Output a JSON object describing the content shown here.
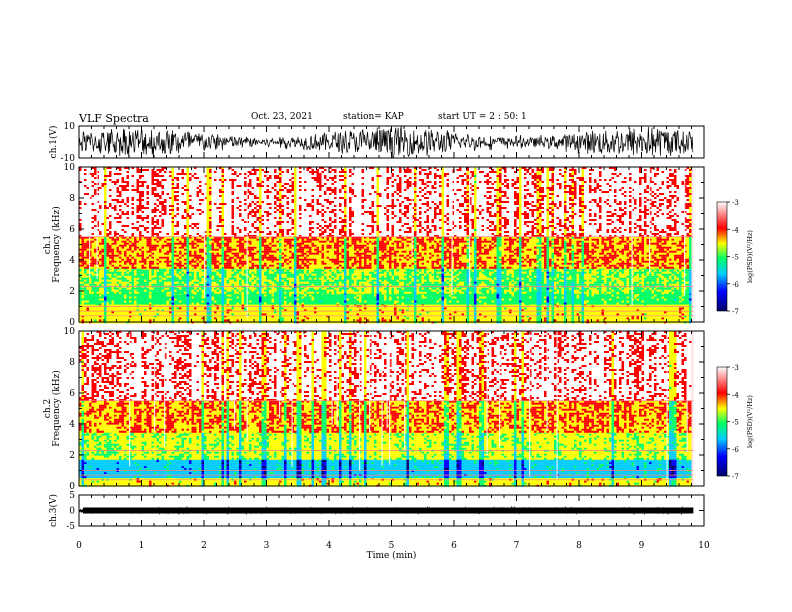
{
  "header": {
    "title": "VLF Spectra",
    "date": "Oct. 23, 2021",
    "station": "station= KAP",
    "start": "start UT = 2 : 50: 1"
  },
  "chart_data": [
    {
      "type": "line",
      "title": "",
      "ylabel": "ch.1(V)",
      "ylim": [
        -10,
        10
      ],
      "yticks": [
        "10",
        "-10"
      ],
      "description_values": {
        "amplitude_min": -10,
        "amplitude_max": 10
      }
    },
    {
      "type": "heatmap",
      "ylabel": "ch.1 Frequency (kHz)",
      "ylim": [
        0,
        10
      ],
      "yticks": [
        "0",
        "2",
        "4",
        "6",
        "8",
        "10"
      ],
      "colorbar": {
        "label": "log(PSD)(V²/Hz)",
        "range": [
          -7,
          -3
        ],
        "ticks": [
          "-3",
          "-4",
          "-5",
          "-6",
          "-7"
        ]
      },
      "bands": [
        {
          "f_low": 0,
          "f_high": 1.2,
          "level": -4.3
        },
        {
          "f_low": 1.2,
          "f_high": 1.9,
          "level": -4.9
        },
        {
          "f_low": 1.9,
          "f_high": 3.5,
          "level": -4.7
        },
        {
          "f_low": 3.5,
          "f_high": 5.5,
          "level": -4.0
        },
        {
          "f_low": 5.5,
          "f_high": 10,
          "level": -3.2
        }
      ]
    },
    {
      "type": "heatmap",
      "ylabel": "ch.2 Frequency (kHz)",
      "ylim": [
        0,
        10
      ],
      "yticks": [
        "0",
        "2",
        "4",
        "6",
        "8",
        "10"
      ],
      "colorbar": {
        "label": "log(PSD)(V²/Hz)",
        "range": [
          -7,
          -3
        ],
        "ticks": [
          "-3",
          "-4",
          "-5",
          "-6",
          "-7"
        ]
      },
      "bands": [
        {
          "f_low": 0,
          "f_high": 0.6,
          "level": -4.3
        },
        {
          "f_low": 0.6,
          "f_high": 1.8,
          "level": -5.6
        },
        {
          "f_low": 1.8,
          "f_high": 3.5,
          "level": -4.5
        },
        {
          "f_low": 3.5,
          "f_high": 5.5,
          "level": -4.0
        },
        {
          "f_low": 5.5,
          "f_high": 10,
          "level": -3.2
        }
      ]
    },
    {
      "type": "line",
      "ylabel": "ch.3(V)",
      "ylim": [
        -5,
        5
      ],
      "yticks": [
        "5",
        "0",
        "-5"
      ],
      "level": 0
    }
  ],
  "xaxis": {
    "label": "Time (min)",
    "range": [
      0,
      10
    ],
    "ticks": [
      "0",
      "1",
      "2",
      "3",
      "4",
      "5",
      "6",
      "7",
      "8",
      "9",
      "10"
    ],
    "data_end": 9.83
  },
  "colors": {
    "scale": [
      "#000066",
      "#0000ff",
      "#00ccff",
      "#00ff66",
      "#ffff00",
      "#ff0000",
      "#ffffff"
    ]
  }
}
